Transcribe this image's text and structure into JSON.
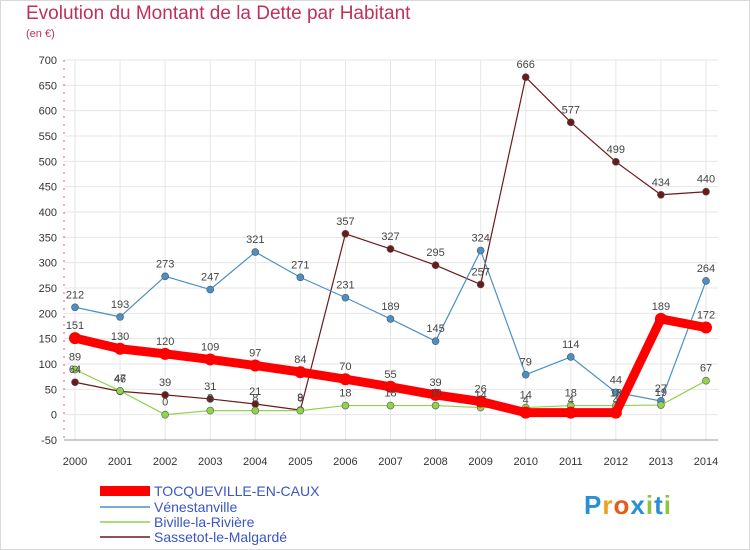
{
  "title": "Evolution du Montant de la Dette par Habitant",
  "unit": "(en €)",
  "brand": "Proxiti",
  "colors": {
    "title": "#c0305a",
    "axis": "#e05a7a",
    "grid": "#e6e6e6"
  },
  "chart_data": {
    "type": "line",
    "x": [
      "2000",
      "2001",
      "2002",
      "2003",
      "2004",
      "2005",
      "2006",
      "2007",
      "2008",
      "2009",
      "2010",
      "2011",
      "2012",
      "2013",
      "2014"
    ],
    "ylim": [
      -50,
      700
    ],
    "yticks": [
      -50,
      0,
      50,
      100,
      150,
      200,
      250,
      300,
      350,
      400,
      450,
      500,
      550,
      600,
      650,
      700
    ],
    "grid": true,
    "legend_position": "bottom-left",
    "series": [
      {
        "name": "TOCQUEVILLE-EN-CAUX",
        "color": "#ff0000",
        "width": 9,
        "radius": 6,
        "labelColor": "#444444",
        "values": [
          151,
          130,
          120,
          109,
          97,
          84,
          70,
          55,
          39,
          26,
          4,
          4,
          4,
          189,
          172
        ],
        "labels": [
          "151",
          "130",
          "120",
          "109",
          "97",
          "84",
          "70",
          "55",
          "39",
          "26",
          "4",
          "4",
          "4",
          "189",
          "172"
        ]
      },
      {
        "name": "Vénestanville",
        "color": "#4a90c8",
        "width": 1.2,
        "radius": 3.5,
        "values": [
          212,
          193,
          273,
          247,
          321,
          271,
          231,
          189,
          145,
          324,
          79,
          114,
          44,
          27,
          264
        ],
        "labels": [
          "212",
          "193",
          "273",
          "247",
          "321",
          "271",
          "231",
          "189",
          "145",
          "324",
          "79",
          "114",
          "44",
          "27",
          "264"
        ]
      },
      {
        "name": "Biville-la-Rivière",
        "color": "#8fd44a",
        "width": 1.2,
        "radius": 3.5,
        "values": [
          89,
          47,
          0,
          8,
          8,
          8,
          18,
          18,
          18,
          14,
          14,
          18,
          18,
          19,
          67
        ],
        "labels": [
          "89",
          "47",
          "0",
          "8",
          "8",
          "8",
          "18",
          "18",
          "18",
          "14",
          "14",
          "18",
          "18",
          "19",
          "67"
        ]
      },
      {
        "name": "Sassetot-le-Malgardé",
        "color": "#6b1a1a",
        "width": 1.2,
        "radius": 3.5,
        "values": [
          64,
          46,
          39,
          31,
          21,
          9,
          357,
          327,
          295,
          257,
          666,
          577,
          499,
          434,
          440
        ],
        "labels": [
          "64",
          "46",
          "39",
          "31",
          "21",
          "9",
          "357",
          "327",
          "295",
          "257",
          "666",
          "577",
          "499",
          "434",
          "440"
        ]
      }
    ]
  }
}
